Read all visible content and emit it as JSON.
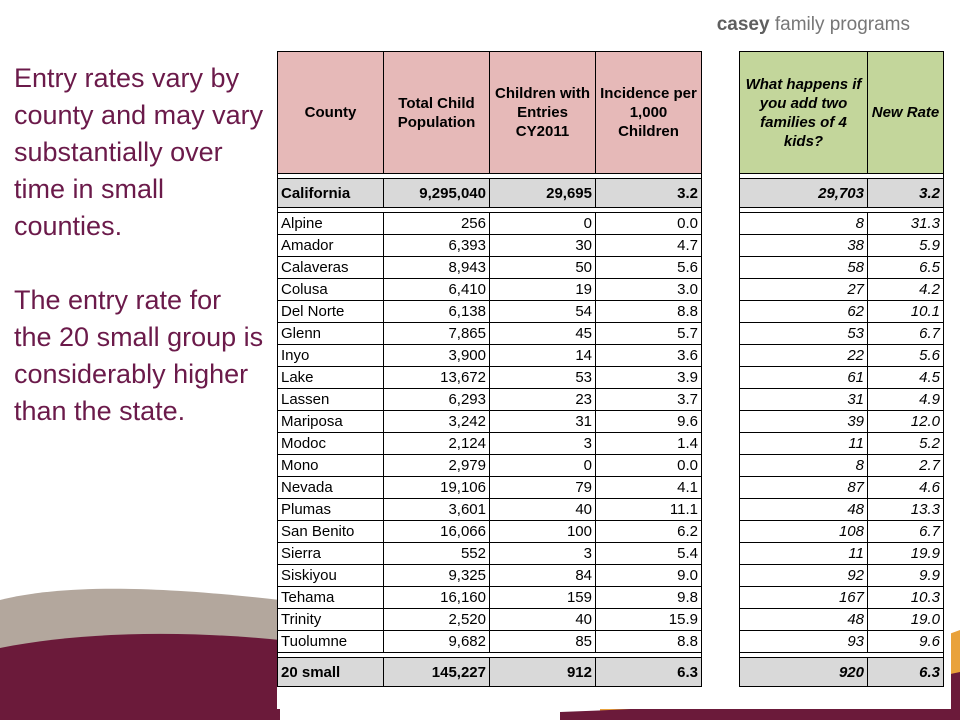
{
  "logo": {
    "bold": "casey",
    "rest": "family programs"
  },
  "text": {
    "para1": "Entry rates vary by county and may vary substantially over time in small counties.",
    "para2": "The entry rate for the 20 small group is considerably higher than the state."
  },
  "colors": {
    "heading_text": "#6b1a4a",
    "pink_header": "#e6b9b8",
    "green_header": "#c3d69b",
    "total_row": "#d9d9d9",
    "swoosh_maroon": "#6b1a3a",
    "swoosh_taupe": "#b3a79d",
    "swoosh_orange": "#e9a23b"
  },
  "table": {
    "headers": {
      "county": "County",
      "population": "Total Child Population",
      "entries": "Children with Entries CY2011",
      "incidence": "Incidence per 1,000 Children",
      "what_if": "What happens if you add two families of 4 kids?",
      "new_rate": "New Rate"
    },
    "state": {
      "county": "California",
      "population": "9,295,040",
      "entries": "29,695",
      "incidence": "3.2",
      "what_if": "29,703",
      "new_rate": "3.2"
    },
    "rows": [
      {
        "county": "Alpine",
        "population": "256",
        "entries": "0",
        "incidence": "0.0",
        "what_if": "8",
        "new_rate": "31.3"
      },
      {
        "county": "Amador",
        "population": "6,393",
        "entries": "30",
        "incidence": "4.7",
        "what_if": "38",
        "new_rate": "5.9"
      },
      {
        "county": "Calaveras",
        "population": "8,943",
        "entries": "50",
        "incidence": "5.6",
        "what_if": "58",
        "new_rate": "6.5"
      },
      {
        "county": "Colusa",
        "population": "6,410",
        "entries": "19",
        "incidence": "3.0",
        "what_if": "27",
        "new_rate": "4.2"
      },
      {
        "county": "Del Norte",
        "population": "6,138",
        "entries": "54",
        "incidence": "8.8",
        "what_if": "62",
        "new_rate": "10.1"
      },
      {
        "county": "Glenn",
        "population": "7,865",
        "entries": "45",
        "incidence": "5.7",
        "what_if": "53",
        "new_rate": "6.7"
      },
      {
        "county": "Inyo",
        "population": "3,900",
        "entries": "14",
        "incidence": "3.6",
        "what_if": "22",
        "new_rate": "5.6"
      },
      {
        "county": "Lake",
        "population": "13,672",
        "entries": "53",
        "incidence": "3.9",
        "what_if": "61",
        "new_rate": "4.5"
      },
      {
        "county": "Lassen",
        "population": "6,293",
        "entries": "23",
        "incidence": "3.7",
        "what_if": "31",
        "new_rate": "4.9"
      },
      {
        "county": "Mariposa",
        "population": "3,242",
        "entries": "31",
        "incidence": "9.6",
        "what_if": "39",
        "new_rate": "12.0"
      },
      {
        "county": "Modoc",
        "population": "2,124",
        "entries": "3",
        "incidence": "1.4",
        "what_if": "11",
        "new_rate": "5.2"
      },
      {
        "county": "Mono",
        "population": "2,979",
        "entries": "0",
        "incidence": "0.0",
        "what_if": "8",
        "new_rate": "2.7"
      },
      {
        "county": "Nevada",
        "population": "19,106",
        "entries": "79",
        "incidence": "4.1",
        "what_if": "87",
        "new_rate": "4.6"
      },
      {
        "county": "Plumas",
        "population": "3,601",
        "entries": "40",
        "incidence": "11.1",
        "what_if": "48",
        "new_rate": "13.3"
      },
      {
        "county": "San Benito",
        "population": "16,066",
        "entries": "100",
        "incidence": "6.2",
        "what_if": "108",
        "new_rate": "6.7"
      },
      {
        "county": "Sierra",
        "population": "552",
        "entries": "3",
        "incidence": "5.4",
        "what_if": "11",
        "new_rate": "19.9"
      },
      {
        "county": "Siskiyou",
        "population": "9,325",
        "entries": "84",
        "incidence": "9.0",
        "what_if": "92",
        "new_rate": "9.9"
      },
      {
        "county": "Tehama",
        "population": "16,160",
        "entries": "159",
        "incidence": "9.8",
        "what_if": "167",
        "new_rate": "10.3"
      },
      {
        "county": "Trinity",
        "population": "2,520",
        "entries": "40",
        "incidence": "15.9",
        "what_if": "48",
        "new_rate": "19.0"
      },
      {
        "county": "Tuolumne",
        "population": "9,682",
        "entries": "85",
        "incidence": "8.8",
        "what_if": "93",
        "new_rate": "9.6"
      }
    ],
    "total": {
      "county": "20 small",
      "population": "145,227",
      "entries": "912",
      "incidence": "6.3",
      "what_if": "920",
      "new_rate": "6.3"
    }
  }
}
